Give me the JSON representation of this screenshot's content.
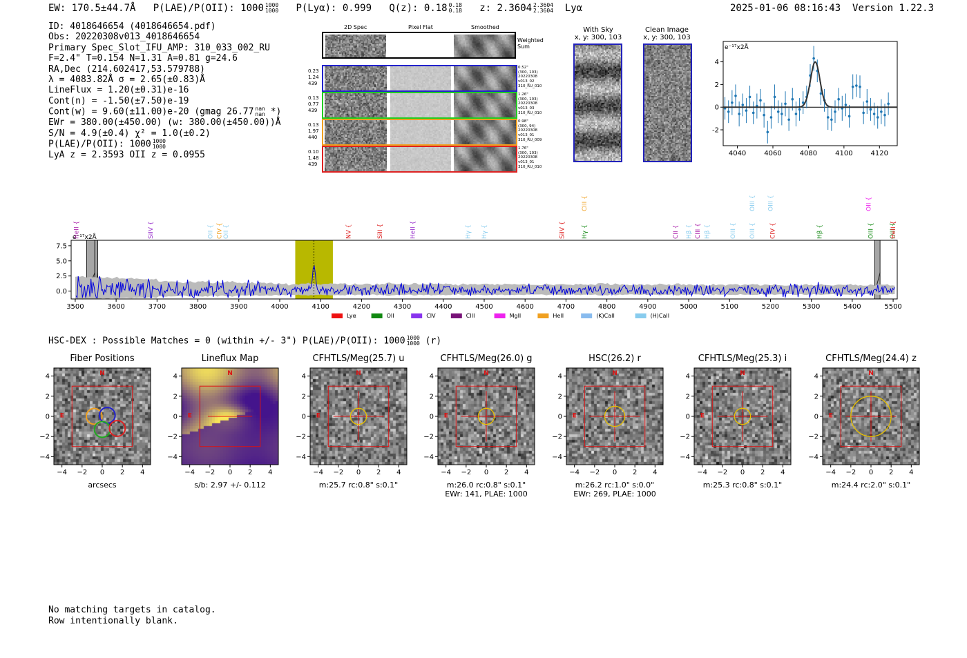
{
  "header": {
    "ew_label": "EW: 170.5±44.7Å",
    "plae_label": "P(LAE)/P(OII): 1000",
    "plae_hi": "1000",
    "plae_lo": "1000",
    "plya_label": "P(Lyα): 0.999",
    "qz_label": "Q(z): 0.18",
    "qz_hi": "0.18",
    "qz_lo": "0.18",
    "z_label": "z: 2.3604",
    "z_hi": "2.3604",
    "z_lo": "2.3604",
    "line_label": "Lyα",
    "timestamp": "2025-01-06 08:16:43",
    "version": "Version 1.22.3"
  },
  "info": {
    "id": "ID: 4018646654 (4018646654.pdf)",
    "obs": "Obs: 20220308v013_4018646654",
    "primary": "Primary Spec_Slot_IFU_AMP: 310_033_002_RU",
    "params": "F=2.4\"  T=0.154  N=1.31  A=0.81  g=24.6",
    "radec": "RA,Dec (214.602417,53.579788)",
    "lambda": "λ = 4083.82Å  σ = 2.65(±0.83)Å",
    "lineflux": "LineFlux = 1.20(±0.31)e-16",
    "contn": "Cont(n) = -1.50(±7.50)e-19",
    "contw": "Cont(w) = 9.60(±11.00)e-20 (gmag 26.77",
    "contw_hi": "nan",
    "contw_lo": "nan",
    "contw_end": "*)",
    "ewr": "EWr = 380.00(±450.00) (w: 380.00(±450.00))Å",
    "sn": "S/N = 4.9(±0.4)  χ² = 1.0(±0.2)",
    "plae": "P(LAE)/P(OII): 1000",
    "plae_hi": "1000",
    "plae_lo": "1000",
    "lyaz": "LyA z = 2.3593  OII z = 0.0955"
  },
  "spec2d": {
    "col_2d": "2D Spec",
    "col_flat": "Pixel Flat",
    "col_smooth": "Smoothed",
    "weighted": "Weighted",
    "sum": "Sum",
    "rows": [
      {
        "color": "#2222cc",
        "l1": "0.23",
        "l2": "1.24",
        "l3": "439",
        "r1": "0.52\"",
        "r2": "(300, 103)",
        "r3": "20220308",
        "r4": "v013_02",
        "r5": "310_RU_010"
      },
      {
        "color": "#22cc22",
        "l1": "0.13",
        "l2": "0.77",
        "l3": "439",
        "r1": "1.26\"",
        "r2": "(300, 103)",
        "r3": "20220308",
        "r4": "v013_03",
        "r5": "310_RU_010"
      },
      {
        "color": "#f0a020",
        "l1": "0.13",
        "l2": "1.97",
        "l3": "440",
        "r1": "0.98\"",
        "r2": "(300, 94)",
        "r3": "20220308",
        "r4": "v013_01",
        "r5": "310_RU_009"
      },
      {
        "color": "#dd2222",
        "l1": "0.10",
        "l2": "1.48",
        "l3": "439",
        "r1": "1.76\"",
        "r2": "(300, 103)",
        "r3": "20220308",
        "r4": "v013_01",
        "r5": "310_RU_010"
      }
    ]
  },
  "sky": {
    "with_sky": "With Sky",
    "with_sky_xy": "x, y: 300, 103",
    "clean": "Clean Image",
    "clean_xy": "x, y: 300, 103"
  },
  "zoom_chart": {
    "type": "scatter",
    "ylabel": "e⁻¹⁷x2Å",
    "xlim": [
      4032,
      4130
    ],
    "ylim": [
      -3.4,
      5.8
    ],
    "xticks": [
      4040,
      4060,
      4080,
      4100,
      4120
    ],
    "yticks": [
      -2,
      0,
      2,
      4
    ],
    "points": [
      [
        4033,
        -0.1,
        1.0
      ],
      [
        4035,
        -0.4,
        1.0
      ],
      [
        4037,
        0.4,
        1.1
      ],
      [
        4039,
        1.0,
        1.0
      ],
      [
        4041,
        -0.6,
        1.1
      ],
      [
        4043,
        0.2,
        1.0
      ],
      [
        4045,
        -0.3,
        1.1
      ],
      [
        4047,
        0.9,
        1.0
      ],
      [
        4049,
        -0.5,
        1.0
      ],
      [
        4051,
        0.1,
        1.1
      ],
      [
        4053,
        0.6,
        1.0
      ],
      [
        4055,
        -0.7,
        1.1
      ],
      [
        4057,
        -2.2,
        1.0
      ],
      [
        4059,
        -0.9,
        1.0
      ],
      [
        4061,
        0.9,
        1.1
      ],
      [
        4063,
        -0.4,
        1.0
      ],
      [
        4065,
        -0.6,
        1.0
      ],
      [
        4067,
        0.3,
        1.1
      ],
      [
        4069,
        -1.1,
        1.0
      ],
      [
        4071,
        0.7,
        1.0
      ],
      [
        4073,
        -0.6,
        1.1
      ],
      [
        4075,
        -0.2,
        1.0
      ],
      [
        4077,
        0.4,
        1.0
      ],
      [
        4079,
        0.9,
        1.0
      ],
      [
        4081,
        2.8,
        1.0
      ],
      [
        4083,
        4.3,
        1.1
      ],
      [
        4085,
        3.2,
        1.0
      ],
      [
        4087,
        1.2,
        1.0
      ],
      [
        4089,
        0.6,
        1.0
      ],
      [
        4091,
        -0.9,
        1.1
      ],
      [
        4093,
        -1.1,
        1.0
      ],
      [
        4095,
        -0.4,
        1.0
      ],
      [
        4097,
        0.7,
        1.0
      ],
      [
        4099,
        -0.1,
        1.1
      ],
      [
        4101,
        0.2,
        1.0
      ],
      [
        4103,
        -0.8,
        1.0
      ],
      [
        4105,
        1.8,
        1.1
      ],
      [
        4107,
        1.9,
        1.0
      ],
      [
        4109,
        1.8,
        1.0
      ],
      [
        4111,
        -0.5,
        1.0
      ],
      [
        4113,
        0.5,
        1.1
      ],
      [
        4115,
        -0.2,
        1.0
      ],
      [
        4117,
        -0.6,
        1.0
      ],
      [
        4119,
        -0.9,
        1.0
      ],
      [
        4121,
        -0.4,
        1.1
      ],
      [
        4123,
        -0.7,
        1.0
      ],
      [
        4125,
        0.3,
        1.0
      ]
    ],
    "fit_center": 4083.82,
    "fit_sigma": 2.65,
    "fit_amp": 4.0
  },
  "full_spec": {
    "type": "line",
    "ylabel": "e⁻¹⁷x2Å",
    "xlim": [
      3490,
      5510
    ],
    "ylim": [
      -1.3,
      8.4
    ],
    "xticks": [
      3500,
      3600,
      3700,
      3800,
      3900,
      4000,
      4100,
      4200,
      4300,
      4400,
      4500,
      4600,
      4700,
      4800,
      4900,
      5000,
      5100,
      5200,
      5300,
      5400,
      5500
    ],
    "yticks": [
      0.0,
      2.5,
      5.0,
      7.5
    ],
    "tick_labels": [
      "3500",
      "3600",
      "3700",
      "3800",
      "3900",
      "4000",
      "4100",
      "4200",
      "4300",
      "4400",
      "4500",
      "4600",
      "4700",
      "4800",
      "4900",
      "5000",
      "5100",
      "5200",
      "5300",
      "5400",
      "5500"
    ],
    "ytick_labels": [
      "0.0",
      "2.5",
      "5.0",
      "7.5"
    ],
    "highlight": [
      4038,
      4130
    ],
    "line_center": 4083.82,
    "masks": [
      [
        3528,
        3548
      ],
      [
        3548,
        3555
      ],
      [
        5455,
        5468
      ]
    ],
    "lines": [
      {
        "name": "HeII",
        "x": 3503,
        "color": "#aa22aa",
        "row": 1
      },
      {
        "name": "SiIV",
        "x": 3684,
        "color": "#9933cc",
        "row": 1
      },
      {
        "name": "OII",
        "x": 3830,
        "color": "#88ccee",
        "row": 1
      },
      {
        "name": "CIV",
        "x": 3852,
        "color": "#f0a020",
        "row": 1
      },
      {
        "name": "OII",
        "x": 3868,
        "color": "#88ccee",
        "row": 1
      },
      {
        "name": "NV",
        "x": 4168,
        "color": "#dd2222",
        "row": 1
      },
      {
        "name": "SiII",
        "x": 4245,
        "color": "#dd2222",
        "row": 1
      },
      {
        "name": "HeII",
        "x": 4325,
        "color": "#9933cc",
        "row": 1
      },
      {
        "name": "Hγ",
        "x": 4460,
        "color": "#88ccee",
        "row": 1
      },
      {
        "name": "Hγ",
        "x": 4500,
        "color": "#88ccee",
        "row": 1
      },
      {
        "name": "SiIV",
        "x": 4690,
        "color": "#dd2222",
        "row": 1
      },
      {
        "name": "Hγ",
        "x": 4745,
        "color": "#118811",
        "row": 1
      },
      {
        "name": "CIII",
        "x": 4745,
        "color": "#f0a020",
        "row": 0
      },
      {
        "name": "CII",
        "x": 4968,
        "color": "#aa22aa",
        "row": 1
      },
      {
        "name": "Hβ",
        "x": 5000,
        "color": "#88ccee",
        "row": 1
      },
      {
        "name": "CIII",
        "x": 5022,
        "color": "#aa22aa",
        "row": 1
      },
      {
        "name": "Hβ",
        "x": 5045,
        "color": "#88ccee",
        "row": 1
      },
      {
        "name": "OIII",
        "x": 5108,
        "color": "#88ccee",
        "row": 1
      },
      {
        "name": "OIII",
        "x": 5155,
        "color": "#88ccee",
        "row": 1
      },
      {
        "name": "OIII",
        "x": 5155,
        "color": "#88ccee",
        "row": 0
      },
      {
        "name": "OIII",
        "x": 5200,
        "color": "#88ccee",
        "row": 0
      },
      {
        "name": "CIV",
        "x": 5205,
        "color": "#dd2222",
        "row": 1
      },
      {
        "name": "Hβ",
        "x": 5320,
        "color": "#118811",
        "row": 1
      },
      {
        "name": "OII",
        "x": 5440,
        "color": "#ee22ee",
        "row": 0
      },
      {
        "name": "OIII",
        "x": 5445,
        "color": "#118811",
        "row": 1
      },
      {
        "name": "OIII",
        "x": 5498,
        "color": "#118811",
        "row": 1
      },
      {
        "name": "HeII",
        "x": 5500,
        "color": "#dd2222",
        "row": 1
      }
    ],
    "legend": [
      {
        "label": "Lyα",
        "color": "#ee1111"
      },
      {
        "label": "OII",
        "color": "#118811"
      },
      {
        "label": "CIV",
        "color": "#8833ee"
      },
      {
        "label": "CIII",
        "color": "#771177"
      },
      {
        "label": "MgII",
        "color": "#ee22ee"
      },
      {
        "label": "HeII",
        "color": "#f0a020"
      },
      {
        "label": "(K)CaII",
        "color": "#88bbee"
      },
      {
        "label": "(H)CaII",
        "color": "#88ccee"
      }
    ]
  },
  "hsc": {
    "summary": "HSC-DEX : Possible Matches = 0 (within +/- 3\")  P(LAE)/P(OII): 1000",
    "summary_hi": "1000",
    "summary_lo": "1000",
    "summary_end": "(r)"
  },
  "cutouts": [
    {
      "title": "Fiber Positions",
      "mode": "fibers",
      "l1": "arcsecs",
      "l2": "",
      "circle_r": 0
    },
    {
      "title": "Lineflux Map",
      "mode": "lineflux",
      "l1": "s/b: 2.97 +/- 0.112",
      "l2": "",
      "circle_r": 0
    },
    {
      "title": "CFHTLS/Meg(25.7) u",
      "mode": "noise",
      "l1": "m:25.7 rc:0.8\"  s:0.1\"",
      "l2": "",
      "circle_r": 0.8
    },
    {
      "title": "CFHTLS/Meg(26.0) g",
      "mode": "noise",
      "l1": "m:26.0 rc:0.8\"  s:0.1\"",
      "l2": "EWr: 141, PLAE: 1000",
      "circle_r": 0.8
    },
    {
      "title": "HSC(26.2) r",
      "mode": "noise",
      "l1": "m:26.2 rc:1.0\"  s:0.0\"",
      "l2": "EWr: 269, PLAE: 1000",
      "circle_r": 1.0
    },
    {
      "title": "CFHTLS/Meg(25.3) i",
      "mode": "noise",
      "l1": "m:25.3 rc:0.8\"  s:0.1\"",
      "l2": "",
      "circle_r": 0.8
    },
    {
      "title": "CFHTLS/Meg(24.4) z",
      "mode": "noise",
      "l1": "m:24.4 rc:2.0\"  s:0.1\"",
      "l2": "",
      "circle_r": 2.0
    }
  ],
  "cutout_axes": {
    "xticks": [
      "−4",
      "−2",
      "0",
      "2",
      "4"
    ],
    "yticks": [
      "4",
      "2",
      "0",
      "−2",
      "−4"
    ],
    "north": "N",
    "east": "E"
  },
  "footer": {
    "line1": "No matching targets in catalog.",
    "line2": "Row intentionally blank."
  },
  "colors": {
    "spectrum": "#0000dd",
    "error_fill": "#bbbbbb",
    "highlight": "#b8b800",
    "fit": "#333333",
    "points": "#1f77b4",
    "marker": "#dd1111",
    "source_circle": "#e8c000"
  }
}
